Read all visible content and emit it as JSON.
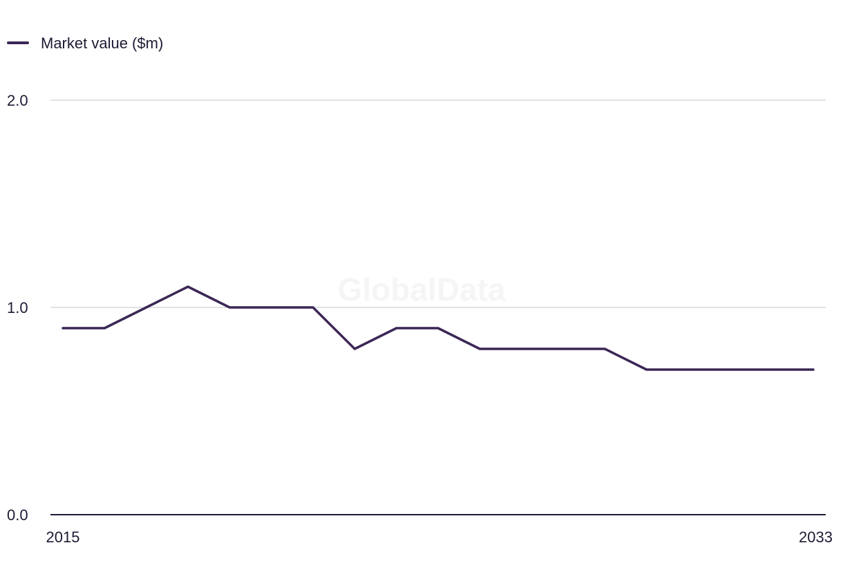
{
  "watermark": "GlobalData",
  "chart_data": {
    "type": "line",
    "title": "",
    "xlabel": "",
    "ylabel": "",
    "x": [
      2015,
      2016,
      2017,
      2018,
      2019,
      2020,
      2021,
      2022,
      2023,
      2024,
      2025,
      2026,
      2027,
      2028,
      2029,
      2030,
      2031,
      2032,
      2033
    ],
    "x_tick_labels": [
      "2015",
      "2033"
    ],
    "y_ticks": [
      0.0,
      1.0,
      2.0
    ],
    "y_tick_labels": [
      "0.0",
      "1.0",
      "2.0"
    ],
    "ylim": [
      0,
      2
    ],
    "xlim": [
      2015,
      2033
    ],
    "grid": "horizontal",
    "legend_position": "top-left",
    "series": [
      {
        "name": "Market value ($m)",
        "color": "#3b2756",
        "values": [
          0.9,
          0.9,
          1.0,
          1.1,
          1.0,
          1.0,
          1.0,
          0.8,
          0.9,
          0.9,
          0.8,
          0.8,
          0.8,
          0.8,
          0.7,
          0.7,
          0.7,
          0.7,
          0.7
        ]
      }
    ],
    "colors": {
      "gridline": "#d9d9de",
      "axis": "#1f1a33",
      "text": "#1f1a33"
    }
  }
}
